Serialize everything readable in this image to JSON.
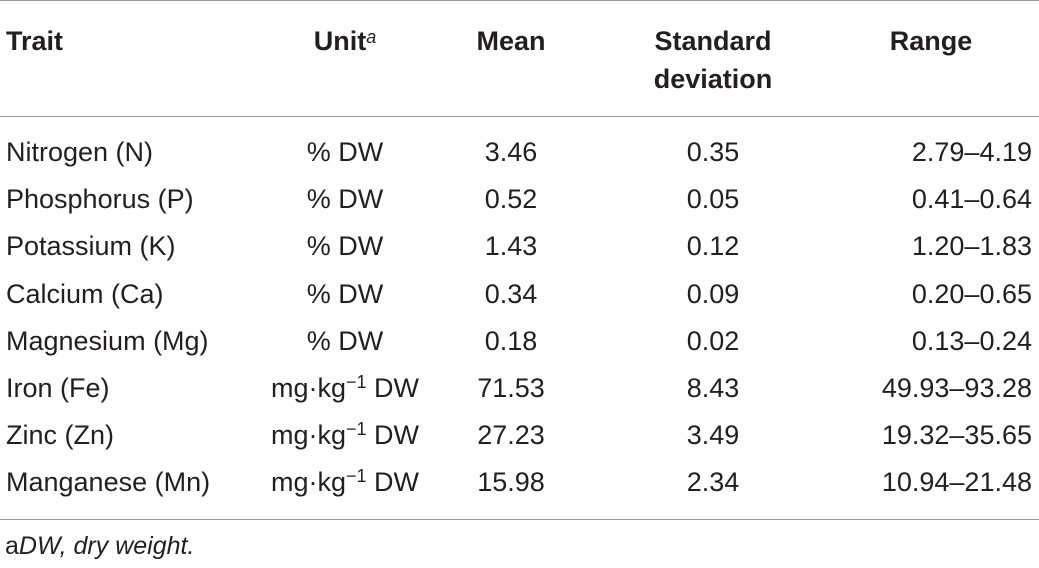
{
  "table": {
    "headers": {
      "trait": "Trait",
      "unit": "Unit",
      "unit_sup": "a",
      "mean": "Mean",
      "sd_line1": "Standard",
      "sd_line2": "deviation",
      "range": "Range"
    },
    "rows": [
      {
        "trait": "Nitrogen (N)",
        "unit": "% DW",
        "unit_sup": "",
        "unit_suffix": "",
        "mean": "3.46",
        "sd": "0.35",
        "range": "2.79–4.19"
      },
      {
        "trait": "Phosphorus (P)",
        "unit": "% DW",
        "unit_sup": "",
        "unit_suffix": "",
        "mean": "0.52",
        "sd": "0.05",
        "range": "0.41–0.64"
      },
      {
        "trait": "Potassium (K)",
        "unit": "% DW",
        "unit_sup": "",
        "unit_suffix": "",
        "mean": "1.43",
        "sd": "0.12",
        "range": "1.20–1.83"
      },
      {
        "trait": "Calcium (Ca)",
        "unit": "% DW",
        "unit_sup": "",
        "unit_suffix": "",
        "mean": "0.34",
        "sd": "0.09",
        "range": "0.20–0.65"
      },
      {
        "trait": "Magnesium (Mg)",
        "unit": "% DW",
        "unit_sup": "",
        "unit_suffix": "",
        "mean": "0.18",
        "sd": "0.02",
        "range": "0.13–0.24"
      },
      {
        "trait": "Iron (Fe)",
        "unit": "mg·kg",
        "unit_sup": "−1",
        "unit_suffix": " DW",
        "mean": "71.53",
        "sd": "8.43",
        "range": "49.93–93.28"
      },
      {
        "trait": "Zinc (Zn)",
        "unit": "mg·kg",
        "unit_sup": "−1",
        "unit_suffix": " DW",
        "mean": "27.23",
        "sd": "3.49",
        "range": "19.32–35.65"
      },
      {
        "trait": "Manganese (Mn)",
        "unit": "mg·kg",
        "unit_sup": "−1",
        "unit_suffix": " DW",
        "mean": "15.98",
        "sd": "2.34",
        "range": "10.94–21.48"
      }
    ]
  },
  "footnote": {
    "mark": "a",
    "text": "DW, dry weight."
  }
}
